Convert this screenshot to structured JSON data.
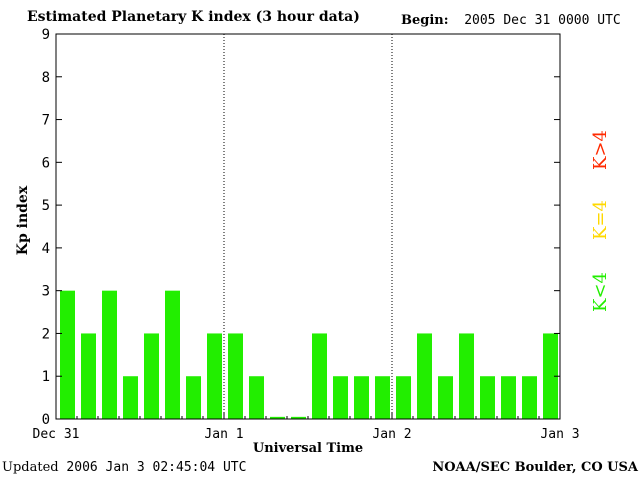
{
  "header": {
    "title": "Estimated Planetary K index (3 hour data)",
    "begin_label": "Begin:",
    "begin_value": "2005 Dec 31 0000 UTC"
  },
  "footer": {
    "updated_label": "Updated",
    "updated_value": "2006 Jan  3 02:45:04 UTC",
    "org": "NOAA/SEC Boulder, CO USA"
  },
  "legend": [
    {
      "label": "K>4",
      "color": "#ff2a00"
    },
    {
      "label": "K=4",
      "color": "#ffd800"
    },
    {
      "label": "K<4",
      "color": "#22ee00"
    }
  ],
  "chart_data": {
    "type": "bar",
    "title": "Estimated Planetary K index (3 hour data)",
    "xlabel": "Universal Time",
    "ylabel": "Kp index",
    "ylim": [
      0,
      9
    ],
    "yticks": [
      0,
      1,
      2,
      3,
      4,
      5,
      6,
      7,
      8,
      9
    ],
    "x_tick_labels": [
      "Dec 31",
      "Jan 1",
      "Jan 2",
      "Jan 3"
    ],
    "values": [
      3,
      2,
      3,
      1,
      2,
      3,
      1,
      2,
      2,
      1,
      0.05,
      0.05,
      2,
      1,
      1,
      1,
      1,
      2,
      1,
      2,
      1,
      1,
      1,
      2
    ],
    "bar_color": "#22ee00",
    "day_separators": [
      "Jan 1",
      "Jan 2"
    ]
  }
}
